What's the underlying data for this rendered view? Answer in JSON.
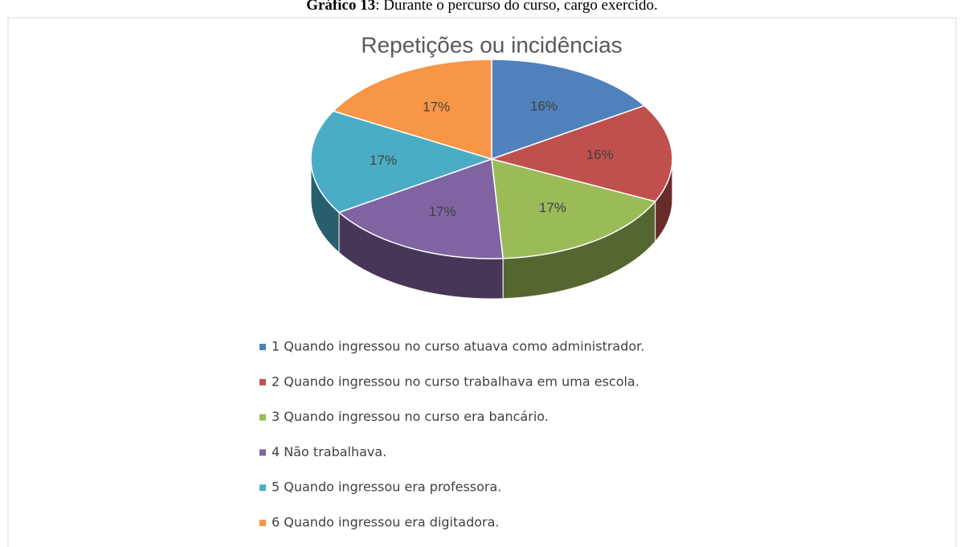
{
  "caption": {
    "label": "Gráfico 13",
    "text": ": Durante o percurso do curso, cargo exercido."
  },
  "chart_data": {
    "type": "pie",
    "title": "Repetições ou incidências",
    "categories": [
      "1 Quando ingressou no curso atuava como administrador.",
      "2 Quando ingressou no curso trabalhava em uma escola.",
      "3 Quando ingressou no curso era bancário.",
      "4 Não trabalhava.",
      "5 Quando ingressou era professora.",
      "6 Quando ingressou era digitadora."
    ],
    "values": [
      16,
      16,
      17,
      17,
      17,
      17
    ],
    "value_labels": [
      "16%",
      "16%",
      "17%",
      "17%",
      "17%",
      "17%"
    ],
    "colors": [
      "#4f81bd",
      "#c0504d",
      "#9bbb59",
      "#8064a2",
      "#4bacc6",
      "#f79646"
    ],
    "legend": "bottom"
  }
}
